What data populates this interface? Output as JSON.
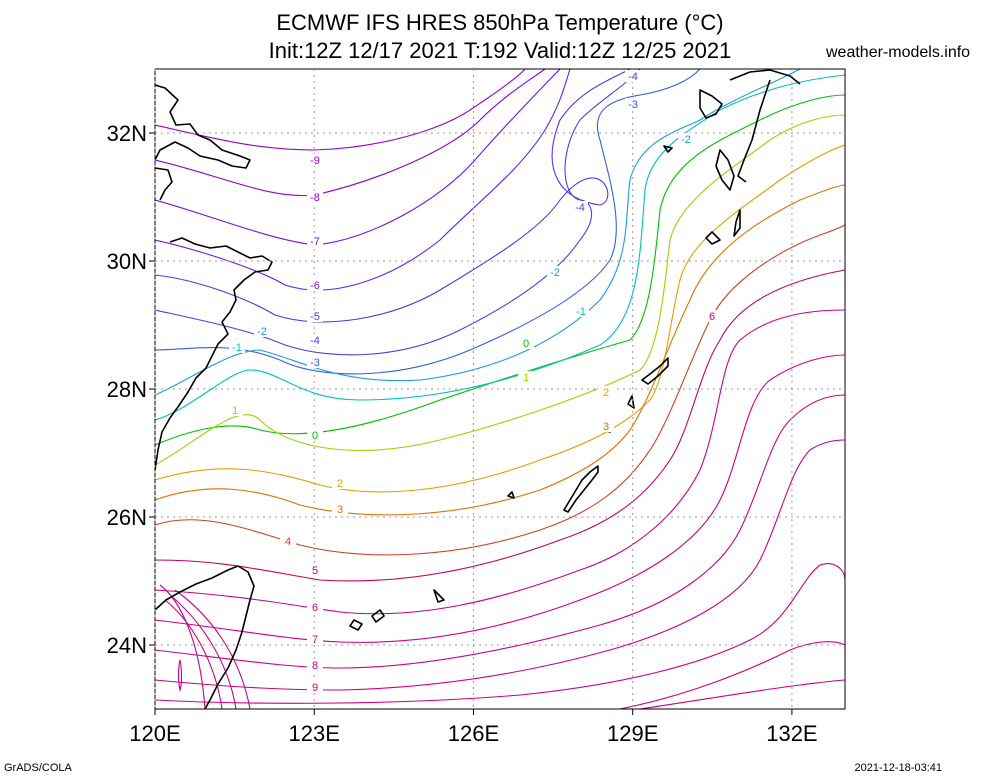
{
  "title_line1": "ECMWF IFS HRES 850hPa Temperature (°C)",
  "title_line2": "Init:12Z 12/17 2021 T:192 Valid:12Z 12/25 2021",
  "brand": "weather-models.info",
  "footer_left": "GrADS/COLA",
  "footer_right": "2021-12-18-03:41",
  "map": {
    "lon_range": [
      120,
      133
    ],
    "lat_range": [
      23,
      33
    ],
    "grid": "dotted",
    "lon_ticks": [
      {
        "value": 120,
        "label": "120E"
      },
      {
        "value": 123,
        "label": "123E"
      },
      {
        "value": 126,
        "label": "126E"
      },
      {
        "value": 129,
        "label": "129E"
      },
      {
        "value": 132,
        "label": "132E"
      }
    ],
    "lat_ticks": [
      {
        "value": 24,
        "label": "24N"
      },
      {
        "value": 26,
        "label": "26N"
      },
      {
        "value": 28,
        "label": "28N"
      },
      {
        "value": 30,
        "label": "30N"
      },
      {
        "value": 32,
        "label": "32N"
      }
    ],
    "contour_levels": [
      {
        "value": -9,
        "label": "-9",
        "color": "#9900cc"
      },
      {
        "value": -8,
        "label": "-8",
        "color": "#8a00d4"
      },
      {
        "value": -7,
        "label": "-7",
        "color": "#7a10d8"
      },
      {
        "value": -6,
        "label": "-6",
        "color": "#6a20dc"
      },
      {
        "value": -5,
        "label": "-5",
        "color": "#5a30e0"
      },
      {
        "value": -4,
        "label": "-4",
        "color": "#4a40e0"
      },
      {
        "value": -3,
        "label": "-3",
        "color": "#3060e0"
      },
      {
        "value": -2,
        "label": "-2",
        "color": "#1a9ae0"
      },
      {
        "value": -1,
        "label": "-1",
        "color": "#00c0c0"
      },
      {
        "value": 0,
        "label": "0",
        "color": "#00c000"
      },
      {
        "value": 1,
        "label": "1",
        "color": "#a0d000"
      },
      {
        "value": 2,
        "label": "2",
        "color": "#e0a000"
      },
      {
        "value": 3,
        "label": "3",
        "color": "#e07000"
      },
      {
        "value": 4,
        "label": "4",
        "color": "#d04020"
      },
      {
        "value": 5,
        "label": "5",
        "color": "#c00060"
      },
      {
        "value": 6,
        "label": "6",
        "color": "#c8008a"
      },
      {
        "value": 7,
        "label": "7",
        "color": "#c8008a"
      },
      {
        "value": 8,
        "label": "8",
        "color": "#c8008a"
      },
      {
        "value": 9,
        "label": "9",
        "color": "#c8008a"
      }
    ]
  }
}
